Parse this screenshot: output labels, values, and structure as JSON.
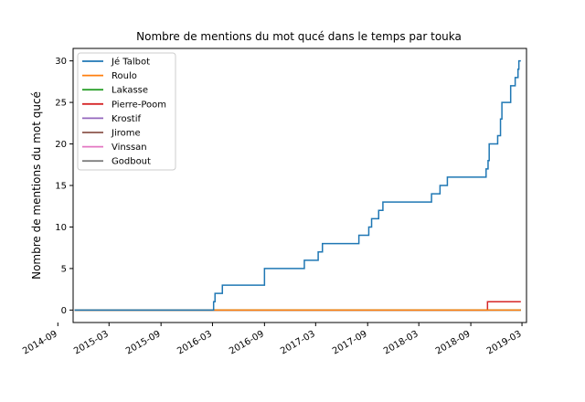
{
  "chart_data": {
    "type": "line",
    "title": "Nombre de mentions du mot qucé dans le temps par touka",
    "xlabel": "",
    "ylabel": "Nombre de mentions du mot qucé",
    "xlim": [
      "2014-10-25",
      "2019-03-17"
    ],
    "ylim": [
      -1.5,
      31.5
    ],
    "x_ticks": [
      "2014-09",
      "2015-03",
      "2015-09",
      "2016-03",
      "2016-09",
      "2017-03",
      "2017-09",
      "2018-03",
      "2018-09",
      "2019-03"
    ],
    "y_ticks": [
      0,
      5,
      10,
      15,
      20,
      25,
      30
    ],
    "grid": false,
    "legend_position": "top-left",
    "series": [
      {
        "name": "Jé Talbot",
        "color": "#1f77b4",
        "step": true,
        "x": [
          "2014-10-30",
          "2016-03-05",
          "2016-03-10",
          "2016-04-05",
          "2016-09-01",
          "2017-01-20",
          "2017-03-10",
          "2017-03-25",
          "2017-08-01",
          "2017-09-05",
          "2017-09-15",
          "2017-10-10",
          "2017-10-25",
          "2018-04-15",
          "2018-05-15",
          "2018-06-10",
          "2018-10-25",
          "2018-11-01",
          "2018-11-05",
          "2018-12-05",
          "2018-12-15",
          "2018-12-20",
          "2019-01-20",
          "2019-02-05",
          "2019-02-15",
          "2019-02-18",
          "2019-02-25"
        ],
        "y": [
          0,
          1,
          2,
          3,
          5,
          6,
          7,
          8,
          9,
          10,
          11,
          12,
          13,
          14,
          15,
          16,
          17,
          18,
          20,
          21,
          23,
          25,
          27,
          28,
          29,
          30,
          30
        ]
      },
      {
        "name": "Roulo",
        "color": "#ff7f0e",
        "step": true,
        "x": [
          "2014-10-30",
          "2019-02-25"
        ],
        "y": [
          0,
          0
        ]
      },
      {
        "name": "Lakasse",
        "color": "#2ca02c",
        "step": true,
        "x": [
          "2014-10-30",
          "2019-02-25"
        ],
        "y": [
          0,
          0
        ]
      },
      {
        "name": "Pierre-Poom",
        "color": "#d62728",
        "step": true,
        "x": [
          "2014-10-30",
          "2018-10-30",
          "2019-02-25"
        ],
        "y": [
          0,
          1,
          1
        ]
      },
      {
        "name": "Krostif",
        "color": "#9467bd",
        "step": true,
        "x": [
          "2014-10-30",
          "2019-02-25"
        ],
        "y": [
          0,
          0
        ]
      },
      {
        "name": "Jirome",
        "color": "#8c564b",
        "step": true,
        "x": [
          "2014-10-30",
          "2019-02-25"
        ],
        "y": [
          0,
          0
        ]
      },
      {
        "name": "Vinssan",
        "color": "#e377c2",
        "step": true,
        "x": [
          "2014-10-30",
          "2018-12-01"
        ],
        "y": [
          0,
          0
        ]
      },
      {
        "name": "Godbout",
        "color": "#7f7f7f",
        "step": true,
        "x": [
          "2014-10-30",
          "2019-02-25"
        ],
        "y": [
          0,
          0
        ]
      }
    ]
  }
}
